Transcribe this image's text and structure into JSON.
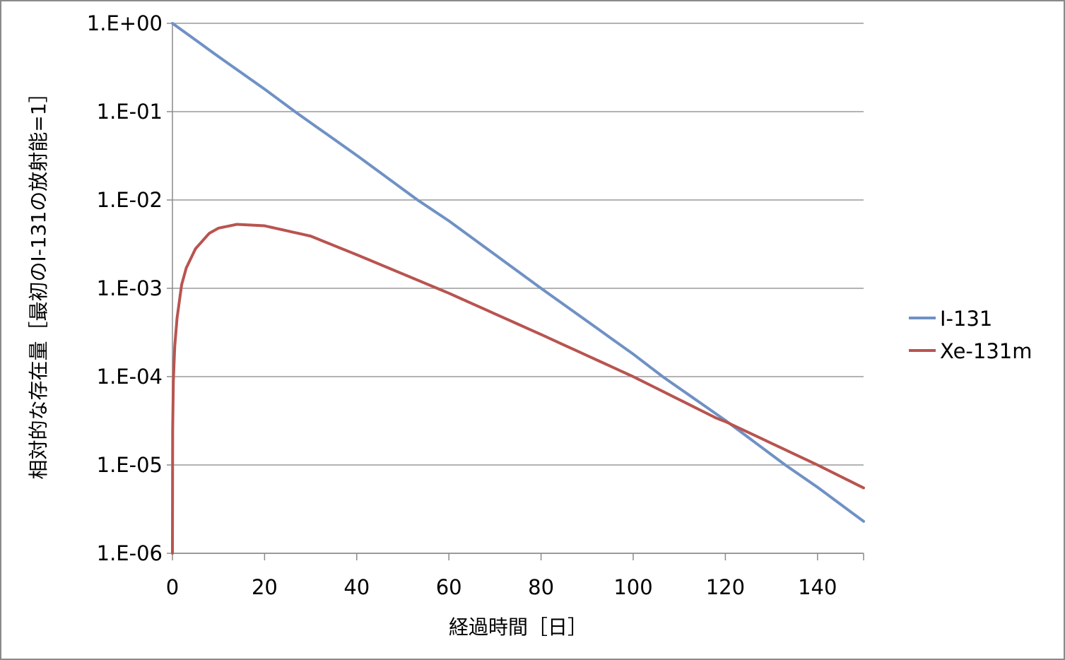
{
  "chart_data": {
    "type": "line",
    "title": "",
    "xlabel": "経過時間［日］",
    "ylabel": "相対的な存在量［最初のI-131の放射能=1］",
    "xlim": [
      0,
      150
    ],
    "xticks": [
      0,
      20,
      40,
      60,
      80,
      100,
      120,
      140
    ],
    "xtick_labels": [
      "0",
      "20",
      "40",
      "60",
      "80",
      "100",
      "120",
      "140"
    ],
    "yscale": "log",
    "ylim": [
      1e-06,
      1
    ],
    "yticks": [
      1,
      0.1,
      0.01,
      0.001,
      0.0001,
      1e-05,
      1e-06
    ],
    "ytick_labels": [
      "1.E+00",
      "1.E-01",
      "1.E-02",
      "1.E-03",
      "1.E-04",
      "1.E-05",
      "1.E-06"
    ],
    "grid": "horizontal",
    "legend_position": "right",
    "series": [
      {
        "name": "I-131",
        "color": "#6f91c5",
        "x": [
          0,
          10,
          20,
          26.6,
          40,
          53.2,
          60,
          80,
          100,
          106.4,
          120,
          133,
          140,
          150
        ],
        "y": [
          1,
          0.42,
          0.18,
          0.1,
          0.032,
          0.01,
          0.0058,
          0.001,
          0.00018,
          0.0001,
          3.2e-05,
          1e-05,
          5.6e-06,
          2.3e-06
        ]
      },
      {
        "name": "Xe-131m",
        "color": "#b85450",
        "x": [
          0,
          0.05,
          0.2,
          0.5,
          1,
          2,
          3,
          5,
          8,
          10,
          14,
          20,
          30,
          40,
          60,
          80,
          100,
          118,
          120,
          140,
          150
        ],
        "y": [
          1e-06,
          2.5e-05,
          9e-05,
          0.00022,
          0.00046,
          0.0011,
          0.0017,
          0.0028,
          0.0042,
          0.0048,
          0.0053,
          0.0051,
          0.0039,
          0.0024,
          0.00088,
          0.0003,
          0.0001,
          3.4e-05,
          3.1e-05,
          1e-05,
          5.5e-06
        ]
      }
    ]
  }
}
